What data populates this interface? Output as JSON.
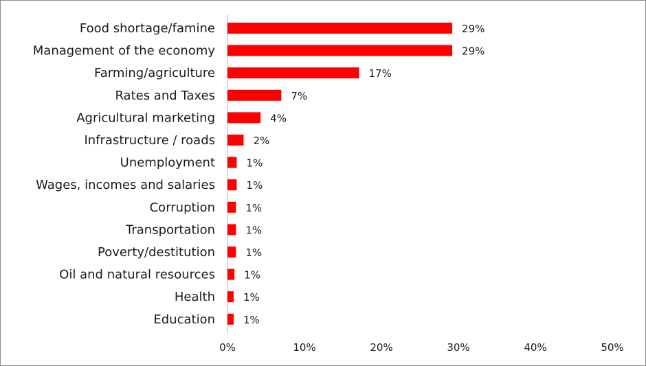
{
  "chart_data": {
    "type": "bar",
    "orientation": "horizontal",
    "categories": [
      "Food shortage/famine",
      "Management of the economy",
      "Farming/agriculture",
      "Rates and Taxes",
      "Agricultural marketing",
      "Infrastructure / roads",
      "Unemployment",
      "Wages, incomes and salaries",
      "Corruption",
      "Transportation",
      "Poverty/destitution",
      "Oil and natural resources",
      "Health",
      "Education"
    ],
    "values": [
      29.2,
      29.2,
      17.1,
      7.0,
      4.3,
      2.1,
      1.2,
      1.2,
      1.1,
      1.1,
      1.1,
      0.9,
      0.8,
      0.8
    ],
    "data_labels": [
      "29%",
      "29%",
      "17%",
      "7%",
      "4%",
      "2%",
      "1%",
      "1%",
      "1%",
      "1%",
      "1%",
      "1%",
      "1%",
      "1%"
    ],
    "xlim": [
      0,
      50
    ],
    "x_ticks": [
      0,
      10,
      20,
      30,
      40,
      50
    ],
    "x_tick_labels": [
      "0%",
      "10%",
      "20%",
      "30%",
      "40%",
      "50%"
    ],
    "bar_color": "#ff0000",
    "axis_color": "#b3b3b3",
    "grid": false,
    "legend": "none"
  }
}
